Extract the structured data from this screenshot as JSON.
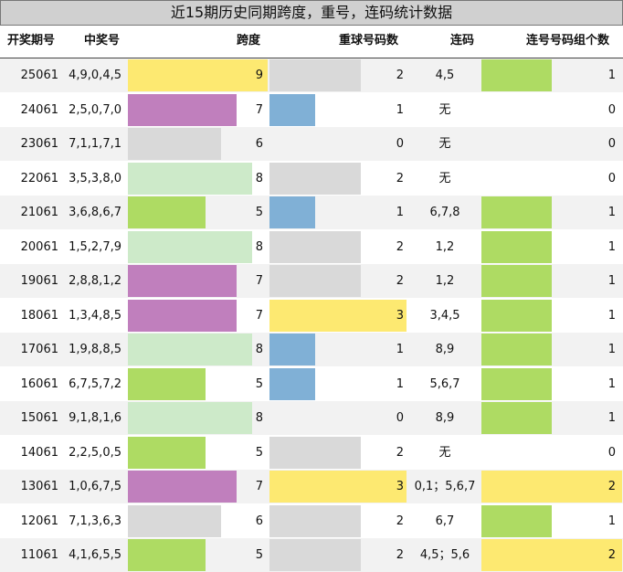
{
  "title": "近15期历史同期跨度，重号，连码统计数据",
  "headers": {
    "period": "开奖期号",
    "numbers": "中奖号",
    "span": "跨度",
    "repeat": "重球号码数",
    "consecutive": "连码",
    "consec_groups": "连号号码组个数"
  },
  "colors": {
    "span_9": "#fde971",
    "span_8": "#cdeac9",
    "span_7": "#c07fbd",
    "span_6": "#d9d9d9",
    "span_5": "#aedb63",
    "repeat_1": "#80b0d6",
    "repeat_2": "#d9d9d9",
    "repeat_3": "#fde971",
    "groups_1": "#aedb63",
    "groups_2": "#fde971"
  },
  "chart_data": {
    "type": "table",
    "title": "近15期历史同期跨度，重号，连码统计数据",
    "columns": [
      "开奖期号",
      "中奖号",
      "跨度",
      "重球号码数",
      "连码",
      "连号号码组个数"
    ],
    "rows": [
      {
        "period": "25061",
        "numbers": "4,9,0,4,5",
        "span": 9,
        "repeat": 2,
        "consecutive": "4,5",
        "groups": 1
      },
      {
        "period": "24061",
        "numbers": "2,5,0,7,0",
        "span": 7,
        "repeat": 1,
        "consecutive": "无",
        "groups": 0
      },
      {
        "period": "23061",
        "numbers": "7,1,1,7,1",
        "span": 6,
        "repeat": 0,
        "consecutive": "无",
        "groups": 0
      },
      {
        "period": "22061",
        "numbers": "3,5,3,8,0",
        "span": 8,
        "repeat": 2,
        "consecutive": "无",
        "groups": 0
      },
      {
        "period": "21061",
        "numbers": "3,6,8,6,7",
        "span": 5,
        "repeat": 1,
        "consecutive": "6,7,8",
        "groups": 1
      },
      {
        "period": "20061",
        "numbers": "1,5,2,7,9",
        "span": 8,
        "repeat": 2,
        "consecutive": "1,2",
        "groups": 1
      },
      {
        "period": "19061",
        "numbers": "2,8,8,1,2",
        "span": 7,
        "repeat": 2,
        "consecutive": "1,2",
        "groups": 1
      },
      {
        "period": "18061",
        "numbers": "1,3,4,8,5",
        "span": 7,
        "repeat": 3,
        "consecutive": "3,4,5",
        "groups": 1
      },
      {
        "period": "17061",
        "numbers": "1,9,8,8,5",
        "span": 8,
        "repeat": 1,
        "consecutive": "8,9",
        "groups": 1
      },
      {
        "period": "16061",
        "numbers": "6,7,5,7,2",
        "span": 5,
        "repeat": 1,
        "consecutive": "5,6,7",
        "groups": 1
      },
      {
        "period": "15061",
        "numbers": "9,1,8,1,6",
        "span": 8,
        "repeat": 0,
        "consecutive": "8,9",
        "groups": 1
      },
      {
        "period": "14061",
        "numbers": "2,2,5,0,5",
        "span": 5,
        "repeat": 2,
        "consecutive": "无",
        "groups": 0
      },
      {
        "period": "13061",
        "numbers": "1,0,6,7,5",
        "span": 7,
        "repeat": 3,
        "consecutive": "0,1；5,6,7",
        "groups": 2
      },
      {
        "period": "12061",
        "numbers": "7,1,3,6,3",
        "span": 6,
        "repeat": 2,
        "consecutive": "6,7",
        "groups": 1
      },
      {
        "period": "11061",
        "numbers": "4,1,6,5,5",
        "span": 5,
        "repeat": 2,
        "consecutive": "4,5；5,6",
        "groups": 2
      }
    ]
  }
}
